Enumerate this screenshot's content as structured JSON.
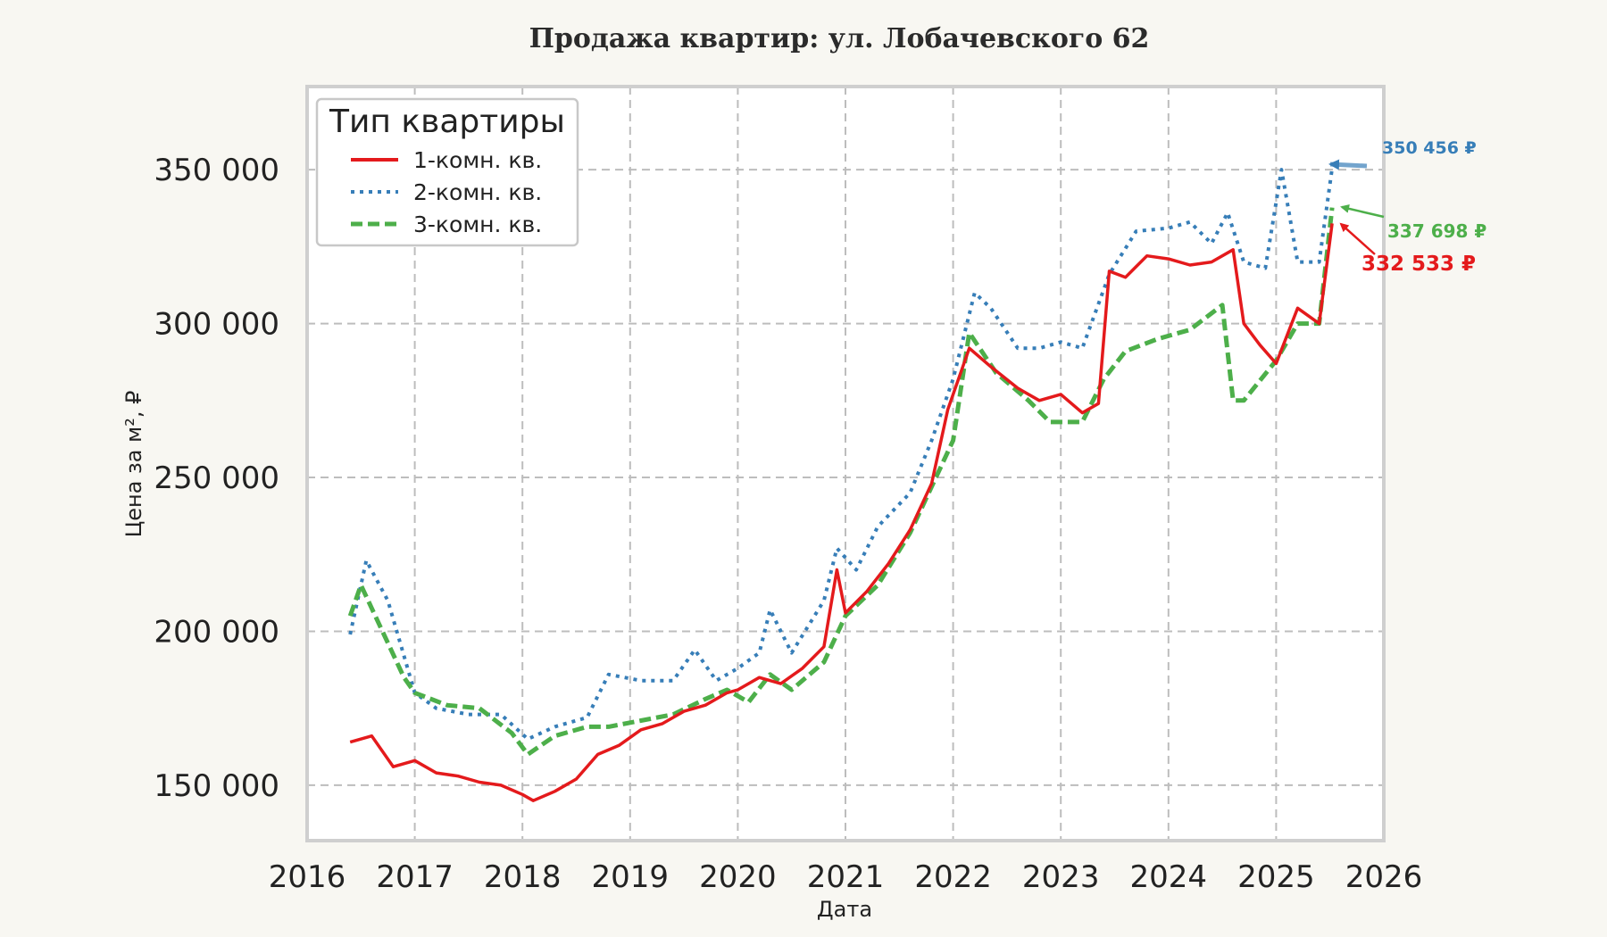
{
  "chart_data": {
    "type": "line",
    "title": "Продажа квартир: ул. Лобачевского 62",
    "xlabel": "Дата",
    "ylabel": "Цена за м², ₽",
    "xlim": [
      2016,
      2026
    ],
    "ylim": [
      132000,
      377000
    ],
    "x_ticks": [
      "2016",
      "2017",
      "2018",
      "2019",
      "2020",
      "2021",
      "2022",
      "2023",
      "2024",
      "2025",
      "2026"
    ],
    "y_ticks": [
      "150 000",
      "200 000",
      "250 000",
      "300 000",
      "350 000"
    ],
    "y_tick_values": [
      150000,
      200000,
      250000,
      300000,
      350000
    ],
    "grid": true,
    "legend": {
      "title": "Тип квартиры",
      "placement": "top-left",
      "entries": [
        "1-комн. кв.",
        "2-комн. кв.",
        "3-комн. кв."
      ]
    },
    "series": [
      {
        "name": "1-комн. кв.",
        "color": "#e41a1c",
        "style": "solid",
        "x": [
          2016.4,
          2016.6,
          2016.8,
          2017.0,
          2017.2,
          2017.4,
          2017.6,
          2017.8,
          2018.0,
          2018.1,
          2018.3,
          2018.5,
          2018.7,
          2018.9,
          2019.1,
          2019.3,
          2019.5,
          2019.7,
          2019.9,
          2020.0,
          2020.2,
          2020.4,
          2020.6,
          2020.8,
          2020.92,
          2021.0,
          2021.2,
          2021.4,
          2021.6,
          2021.8,
          2021.95,
          2022.15,
          2022.35,
          2022.6,
          2022.8,
          2023.0,
          2023.2,
          2023.35,
          2023.45,
          2023.6,
          2023.8,
          2024.0,
          2024.2,
          2024.4,
          2024.6,
          2024.7,
          2024.85,
          2025.0,
          2025.2,
          2025.4,
          2025.52
        ],
        "y": [
          164000,
          166000,
          156000,
          158000,
          154000,
          153000,
          151000,
          150000,
          147000,
          145000,
          148000,
          152000,
          160000,
          163000,
          168000,
          170000,
          174000,
          176000,
          180000,
          181000,
          185000,
          183000,
          188000,
          195000,
          220000,
          206000,
          213000,
          222000,
          233000,
          248000,
          272000,
          292000,
          286000,
          279000,
          275000,
          277000,
          271000,
          274000,
          317000,
          315000,
          322000,
          321000,
          319000,
          320000,
          324000,
          300000,
          293000,
          287000,
          305000,
          300000,
          332533
        ]
      },
      {
        "name": "2-комн. кв.",
        "color": "#377eb8",
        "style": "dotted",
        "x": [
          2016.4,
          2016.55,
          2016.75,
          2017.0,
          2017.2,
          2017.5,
          2017.8,
          2018.05,
          2018.3,
          2018.6,
          2018.8,
          2019.1,
          2019.4,
          2019.6,
          2019.8,
          2020.0,
          2020.2,
          2020.3,
          2020.5,
          2020.8,
          2020.92,
          2021.1,
          2021.3,
          2021.6,
          2021.8,
          2022.0,
          2022.2,
          2022.35,
          2022.6,
          2022.8,
          2023.0,
          2023.2,
          2023.45,
          2023.7,
          2024.0,
          2024.2,
          2024.4,
          2024.55,
          2024.7,
          2024.9,
          2025.05,
          2025.2,
          2025.4,
          2025.52
        ],
        "y": [
          199000,
          223000,
          210000,
          180000,
          175000,
          173000,
          173000,
          165000,
          169000,
          172000,
          186000,
          184000,
          184000,
          194000,
          184000,
          188000,
          193000,
          207000,
          193000,
          210000,
          227000,
          220000,
          234000,
          245000,
          262000,
          282000,
          310000,
          305000,
          292000,
          292000,
          294000,
          292000,
          316000,
          330000,
          331000,
          333000,
          326000,
          336000,
          320000,
          318000,
          350000,
          320000,
          320000,
          350456
        ]
      },
      {
        "name": "3-комн. кв.",
        "color": "#4daf4a",
        "style": "dashed",
        "x": [
          2016.4,
          2016.5,
          2016.7,
          2016.9,
          2017.0,
          2017.3,
          2017.6,
          2017.9,
          2018.05,
          2018.3,
          2018.6,
          2018.8,
          2019.1,
          2019.4,
          2019.7,
          2019.9,
          2020.1,
          2020.3,
          2020.5,
          2020.8,
          2021.0,
          2021.3,
          2021.6,
          2021.8,
          2022.0,
          2022.15,
          2022.4,
          2022.7,
          2022.9,
          2023.2,
          2023.4,
          2023.6,
          2023.9,
          2024.2,
          2024.5,
          2024.6,
          2024.7,
          2025.0,
          2025.2,
          2025.4,
          2025.52
        ],
        "y": [
          205000,
          215000,
          200000,
          185000,
          180000,
          176000,
          175000,
          167000,
          160000,
          166000,
          169000,
          169000,
          171000,
          173000,
          178000,
          181000,
          177000,
          186000,
          181000,
          190000,
          205000,
          215000,
          232000,
          247000,
          262000,
          297000,
          284000,
          275000,
          268000,
          268000,
          282000,
          291000,
          295000,
          298000,
          306000,
          275000,
          275000,
          288000,
          300000,
          300000,
          337698
        ]
      }
    ],
    "annotations": [
      {
        "text": "350 456 ₽",
        "color": "#377eb8",
        "series": 1
      },
      {
        "text": "337 698 ₽",
        "color": "#4daf4a",
        "series": 2
      },
      {
        "text": "332 533 ₽",
        "color": "#e41a1c",
        "series": 0
      }
    ]
  }
}
